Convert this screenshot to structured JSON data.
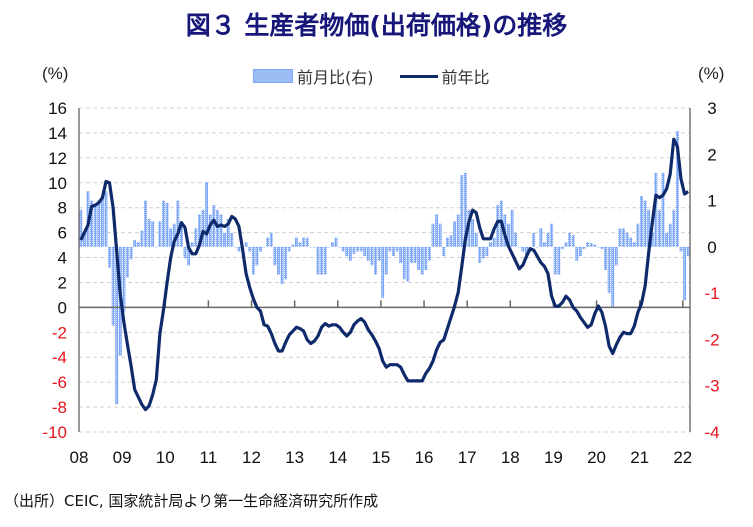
{
  "chart_data": {
    "type": "bar+line",
    "title": "図３ 生産者物価(出荷価格)の推移",
    "left_unit": "(%)",
    "right_unit": "(%)",
    "left_ylim": [
      -10,
      16
    ],
    "right_ylim": [
      -4,
      3
    ],
    "left_ticks": [
      16,
      14,
      12,
      10,
      8,
      6,
      4,
      2,
      0,
      -2,
      -4,
      -6,
      -8,
      -10
    ],
    "right_ticks": [
      3,
      2,
      1,
      0,
      -1,
      -2,
      -3,
      -4
    ],
    "x_tick_labels": [
      "08",
      "09",
      "10",
      "11",
      "12",
      "13",
      "14",
      "15",
      "16",
      "17",
      "18",
      "19",
      "20",
      "21",
      "22"
    ],
    "start": "2008-01",
    "frequency": "monthly",
    "grid": true,
    "legend_position": "top-center",
    "source": "（出所）CEIC, 国家統計局より第一生命経済研究所作成",
    "negative_tick_color": "#e8141e",
    "bar_color": "#7aa6f5",
    "line_color": "#0f2a6b",
    "series": [
      {
        "name": "前月比(右)",
        "type": "bar",
        "axis": "right",
        "values": [
          0.8,
          0.3,
          1.2,
          1.0,
          0.9,
          1.0,
          1.1,
          1.2,
          -0.45,
          -1.7,
          -3.4,
          -2.35,
          -1.4,
          -0.66,
          -0.27,
          0.15,
          0.1,
          0.35,
          1.0,
          0.6,
          0.55,
          0.0,
          0.55,
          1.0,
          0.95,
          0.4,
          0.5,
          1.0,
          0.5,
          -0.25,
          -0.4,
          0.1,
          0.4,
          0.7,
          0.8,
          1.4,
          0.7,
          0.9,
          0.8,
          0.7,
          0.3,
          0.6,
          0.3,
          0.0,
          -0.1,
          0.0,
          0.1,
          -0.1,
          -0.6,
          -0.4,
          -0.1,
          0.0,
          0.2,
          0.3,
          -0.4,
          -0.6,
          -0.8,
          -0.7,
          -0.1,
          0.05,
          0.2,
          0.1,
          0.2,
          0.2,
          0.0,
          0.0,
          -0.6,
          -0.6,
          -0.6,
          0.0,
          0.1,
          0.2,
          0.0,
          -0.1,
          -0.2,
          -0.3,
          -0.15,
          -0.1,
          -0.1,
          -0.2,
          -0.3,
          -0.4,
          -0.6,
          -0.3,
          -1.1,
          -0.6,
          -0.1,
          -0.2,
          -0.1,
          -0.35,
          -0.7,
          -0.75,
          -0.35,
          -0.35,
          -0.5,
          -0.6,
          -0.5,
          -0.3,
          0.5,
          0.7,
          0.5,
          -0.2,
          0.2,
          0.25,
          0.55,
          0.7,
          1.55,
          1.6,
          0.8,
          0.6,
          0.3,
          -0.35,
          -0.25,
          -0.2,
          0.1,
          0.2,
          0.9,
          1.0,
          0.7,
          0.5,
          0.8,
          0.3,
          0.0,
          -0.1,
          -0.25,
          -0.1,
          0.3,
          0.0,
          0.4,
          0.1,
          0.3,
          0.5,
          -0.6,
          -0.6,
          -0.05,
          0.1,
          0.3,
          0.25,
          -0.3,
          -0.2,
          -0.05,
          0.1,
          0.08,
          0.05,
          0.0,
          -0.05,
          -0.5,
          -1.0,
          -1.3,
          -0.4,
          0.4,
          0.4,
          0.3,
          0.2,
          0.1,
          0.5,
          1.1,
          1.0,
          0.8,
          0.3,
          1.6,
          0.8,
          1.6,
          0.3,
          0.5,
          0.8,
          2.5,
          -0.1,
          -1.15,
          -0.2
        ]
      },
      {
        "name": "前年比",
        "type": "line",
        "axis": "left",
        "values": [
          5.4,
          6.0,
          6.6,
          8.1,
          8.2,
          8.4,
          8.8,
          10.1,
          10.0,
          8.0,
          4.5,
          1.0,
          -1.2,
          -3.0,
          -4.7,
          -6.6,
          -7.2,
          -7.8,
          -8.2,
          -7.9,
          -7.0,
          -5.8,
          -2.1,
          -0.2,
          2.0,
          4.0,
          5.3,
          5.9,
          6.8,
          6.4,
          4.8,
          4.3,
          4.3,
          5.0,
          6.1,
          5.9,
          6.6,
          7.0,
          6.5,
          6.6,
          6.5,
          6.7,
          7.3,
          7.1,
          6.5,
          4.7,
          2.7,
          1.6,
          0.7,
          0.0,
          -0.3,
          -1.4,
          -1.5,
          -2.1,
          -2.9,
          -3.5,
          -3.5,
          -2.8,
          -2.2,
          -1.9,
          -1.6,
          -1.7,
          -1.9,
          -2.6,
          -2.9,
          -2.7,
          -2.3,
          -1.6,
          -1.3,
          -1.5,
          -1.4,
          -1.4,
          -1.6,
          -2.0,
          -2.3,
          -2.0,
          -1.4,
          -1.1,
          -0.9,
          -1.2,
          -1.8,
          -2.2,
          -2.7,
          -3.3,
          -4.3,
          -4.8,
          -4.6,
          -4.6,
          -4.6,
          -4.8,
          -5.4,
          -5.9,
          -5.9,
          -5.9,
          -5.9,
          -5.9,
          -5.3,
          -4.9,
          -4.3,
          -3.4,
          -2.8,
          -2.6,
          -1.7,
          -0.8,
          0.1,
          1.2,
          3.3,
          5.5,
          6.9,
          7.8,
          7.6,
          6.4,
          5.5,
          5.5,
          5.5,
          6.3,
          6.9,
          6.9,
          5.8,
          4.9,
          4.3,
          3.7,
          3.1,
          3.4,
          4.1,
          4.7,
          4.6,
          4.1,
          3.6,
          3.3,
          2.7,
          0.9,
          0.1,
          0.1,
          0.4,
          0.9,
          0.6,
          0.0,
          -0.3,
          -0.8,
          -1.2,
          -1.6,
          -1.4,
          -0.5,
          0.1,
          -0.4,
          -1.5,
          -3.1,
          -3.7,
          -3.0,
          -2.4,
          -2.0,
          -2.1,
          -2.1,
          -1.5,
          -0.4,
          0.3,
          1.7,
          4.4,
          6.8,
          9.0,
          8.8,
          9.0,
          9.5,
          10.7,
          13.5,
          12.9,
          10.3,
          9.1,
          9.3
        ]
      }
    ]
  }
}
